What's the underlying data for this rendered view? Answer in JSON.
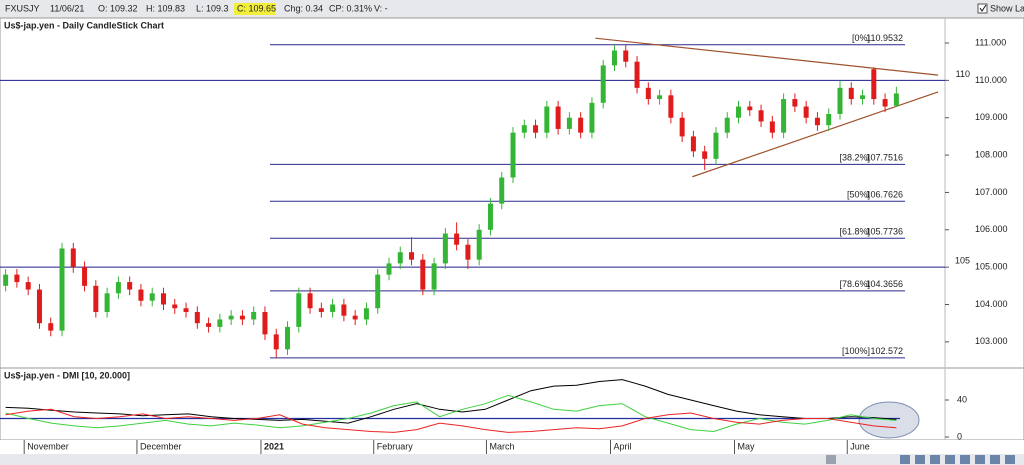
{
  "toolbar": {
    "symbol": "FXUSJY",
    "date": "11/06/21",
    "open": "O: 109.32",
    "high": "H: 109.83",
    "low": "L: 109.3",
    "close": "C: 109.65",
    "change": "Chg: 0.34",
    "change_percent": "CP: 0.31%",
    "volume": "V: -",
    "show_last": "Show Last"
  },
  "chart_data": [
    {
      "type": "candlestick",
      "title": "Us$-jap.yen - Daily CandleStick Chart",
      "categories": [
        null,
        null,
        "November",
        null,
        null,
        null,
        null,
        null,
        null,
        null,
        null,
        null,
        "December",
        null,
        null,
        null,
        null,
        null,
        null,
        null,
        null,
        null,
        null,
        "2021",
        null,
        null,
        null,
        null,
        null,
        null,
        null,
        null,
        null,
        "February",
        null,
        null,
        null,
        null,
        null,
        null,
        null,
        null,
        null,
        "March",
        null,
        null,
        null,
        null,
        null,
        null,
        null,
        null,
        null,
        null,
        "April",
        null,
        null,
        null,
        null,
        null,
        null,
        null,
        null,
        null,
        null,
        "May",
        null,
        null,
        null,
        null,
        null,
        null,
        null,
        null,
        null,
        "June",
        null,
        null,
        null,
        null
      ],
      "open": [
        104.5,
        104.8,
        104.6,
        104.4,
        103.5,
        103.3,
        105.5,
        105.0,
        104.5,
        103.8,
        104.3,
        104.6,
        104.4,
        104.1,
        104.3,
        104.0,
        103.9,
        103.8,
        103.5,
        103.4,
        103.6,
        103.7,
        103.6,
        103.8,
        103.2,
        102.8,
        103.4,
        104.3,
        103.9,
        103.8,
        104.0,
        103.7,
        103.6,
        103.9,
        104.8,
        105.1,
        105.4,
        105.2,
        104.4,
        105.1,
        105.9,
        105.6,
        105.2,
        106.0,
        106.7,
        107.4,
        108.6,
        108.8,
        108.6,
        109.3,
        108.7,
        109.0,
        108.6,
        109.4,
        110.4,
        110.8,
        110.5,
        109.8,
        109.5,
        109.6,
        109.0,
        108.5,
        108.1,
        107.9,
        108.6,
        109.0,
        109.3,
        109.2,
        108.9,
        108.6,
        109.5,
        109.3,
        109.0,
        108.8,
        109.1,
        109.8,
        109.5,
        110.3,
        109.5,
        109.32
      ],
      "high": [
        104.95,
        104.95,
        104.75,
        104.55,
        103.65,
        105.65,
        105.65,
        105.15,
        104.65,
        104.45,
        104.75,
        104.75,
        104.55,
        104.45,
        104.45,
        104.15,
        104.05,
        103.95,
        103.65,
        103.75,
        103.85,
        103.85,
        103.95,
        103.95,
        103.35,
        103.55,
        104.45,
        104.45,
        104.05,
        104.15,
        104.15,
        103.85,
        104.05,
        104.95,
        105.25,
        105.55,
        105.8,
        105.35,
        105.25,
        106.05,
        106.2,
        105.75,
        106.15,
        106.85,
        107.55,
        108.75,
        108.95,
        108.95,
        109.45,
        109.45,
        109.15,
        109.15,
        109.55,
        110.55,
        110.95,
        110.95,
        110.65,
        109.95,
        109.75,
        109.75,
        109.15,
        108.65,
        108.25,
        108.75,
        109.15,
        109.45,
        109.45,
        109.35,
        109.05,
        109.65,
        109.65,
        109.45,
        109.15,
        109.25,
        110.0,
        109.95,
        109.75,
        110.35,
        109.65,
        109.83
      ],
      "low": [
        104.35,
        104.45,
        104.25,
        103.35,
        103.15,
        103.15,
        104.85,
        104.35,
        103.65,
        103.65,
        104.15,
        104.25,
        103.95,
        103.95,
        103.85,
        103.75,
        103.65,
        103.35,
        103.25,
        103.25,
        103.45,
        103.45,
        103.45,
        103.05,
        102.57,
        102.65,
        103.25,
        103.75,
        103.65,
        103.65,
        103.55,
        103.45,
        103.45,
        103.75,
        104.65,
        104.95,
        105.05,
        104.25,
        104.25,
        104.95,
        105.45,
        104.95,
        105.05,
        105.85,
        106.55,
        107.25,
        108.45,
        108.45,
        108.45,
        108.55,
        108.55,
        108.45,
        108.45,
        109.25,
        110.25,
        110.35,
        109.65,
        109.35,
        109.35,
        108.85,
        108.35,
        107.95,
        107.6,
        107.75,
        108.45,
        108.85,
        109.05,
        108.75,
        108.45,
        108.45,
        109.15,
        108.85,
        108.65,
        108.65,
        108.95,
        109.35,
        109.35,
        109.35,
        109.15,
        109.3
      ],
      "close": [
        104.8,
        104.6,
        104.4,
        103.5,
        103.3,
        105.5,
        105.0,
        104.5,
        103.8,
        104.3,
        104.6,
        104.4,
        104.1,
        104.3,
        104.0,
        103.9,
        103.8,
        103.5,
        103.4,
        103.6,
        103.7,
        103.6,
        103.8,
        103.2,
        102.8,
        103.4,
        104.3,
        103.9,
        103.8,
        104.0,
        103.7,
        103.6,
        103.9,
        104.8,
        105.1,
        105.4,
        105.2,
        104.4,
        105.1,
        105.9,
        105.6,
        105.2,
        106.0,
        106.7,
        107.4,
        108.6,
        108.8,
        108.6,
        109.3,
        108.7,
        109.0,
        108.6,
        109.4,
        110.4,
        110.8,
        110.5,
        109.8,
        109.5,
        109.6,
        109.0,
        108.5,
        108.1,
        107.9,
        108.6,
        109.0,
        109.3,
        109.2,
        108.9,
        108.6,
        109.5,
        109.3,
        109.0,
        108.8,
        109.1,
        109.8,
        109.5,
        109.6,
        109.5,
        109.3,
        109.65
      ],
      "up_color": "#35b535",
      "down_color": "#e01b1b",
      "ylim": [
        102.3,
        111.67
      ],
      "yticks": [
        {
          "value": 103,
          "label": "103.000"
        },
        {
          "value": 104,
          "label": "104.000"
        },
        {
          "value": 105,
          "label": "105.000"
        },
        {
          "value": 106,
          "label": "106.000"
        },
        {
          "value": 107,
          "label": "107.000"
        },
        {
          "value": 108,
          "label": "108.000"
        },
        {
          "value": 109,
          "label": "109.000"
        },
        {
          "value": 110,
          "label": "110.000"
        },
        {
          "value": 111,
          "label": "111.000"
        }
      ],
      "hlines": [
        {
          "value": 110,
          "label": "110"
        },
        {
          "value": 105,
          "label": "105"
        }
      ],
      "hline_color": "#1c1c8a",
      "fib_levels": [
        {
          "label": "[0%]",
          "value": 110.9532
        },
        {
          "label": "[38.2%]",
          "value": 107.7516
        },
        {
          "label": "[50%]",
          "value": 106.7626
        },
        {
          "label": "[61.8%]",
          "value": 105.7736
        },
        {
          "label": "[78.6%]",
          "value": 104.3656
        },
        {
          "label": "[100%]",
          "value": 102.572
        }
      ],
      "fib_color": "#2a2a8c",
      "trendlines": [
        {
          "x": [
            52.3,
            82.7
          ],
          "y": [
            111.13,
            110.14
          ]
        },
        {
          "x": [
            60.9,
            82.7
          ],
          "y": [
            107.42,
            109.69
          ]
        }
      ],
      "trendline_color": "#a0522d"
    },
    {
      "type": "line",
      "title": "Us$-jap.yen - DMI [10, 20.000]",
      "series": [
        {
          "color": "#000000",
          "values": [
            32,
            31,
            29,
            27,
            26,
            25,
            23,
            24,
            25,
            22,
            20,
            19,
            18,
            19,
            17,
            15,
            22,
            30,
            36,
            30,
            27,
            30,
            40,
            50,
            55,
            56,
            60,
            62,
            55,
            46,
            40,
            34,
            28,
            24,
            22,
            20,
            20,
            22,
            21,
            19
          ]
        },
        {
          "color": "#3fd13f",
          "values": [
            26,
            20,
            15,
            12,
            10,
            12,
            15,
            18,
            14,
            12,
            15,
            13,
            10,
            12,
            16,
            20,
            26,
            34,
            38,
            22,
            30,
            36,
            45,
            38,
            30,
            28,
            34,
            36,
            22,
            15,
            8,
            6,
            14,
            20,
            16,
            14,
            18,
            24,
            20,
            18
          ]
        },
        {
          "color": "#ee2222",
          "values": [
            24,
            28,
            30,
            22,
            20,
            22,
            25,
            20,
            22,
            20,
            18,
            20,
            24,
            14,
            10,
            8,
            6,
            5,
            8,
            15,
            12,
            8,
            5,
            6,
            8,
            10,
            9,
            12,
            20,
            24,
            26,
            20,
            16,
            14,
            18,
            20,
            20,
            16,
            12,
            10
          ]
        }
      ],
      "reference_line": 20,
      "reference_color": "#2030a0",
      "ylim": [
        -3.2,
        72.4
      ],
      "yticks": [
        0,
        40
      ]
    }
  ]
}
